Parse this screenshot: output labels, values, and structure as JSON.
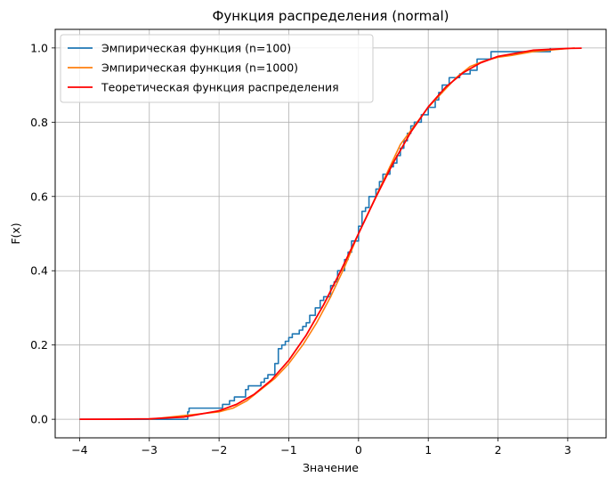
{
  "chart_data": {
    "type": "line",
    "title": "Функция распределения (normal)",
    "xlabel": "Значение",
    "ylabel": "F(x)",
    "xlim": [
      -4.35,
      3.55
    ],
    "ylim": [
      -0.05,
      1.05
    ],
    "xticks": [
      -4,
      -3,
      -2,
      -1,
      0,
      1,
      2,
      3
    ],
    "yticks": [
      0.0,
      0.2,
      0.4,
      0.6,
      0.8,
      1.0
    ],
    "xtick_labels": [
      "−4",
      "−3",
      "−2",
      "−1",
      "0",
      "1",
      "2",
      "3"
    ],
    "ytick_labels": [
      "0.0",
      "0.2",
      "0.4",
      "0.6",
      "0.8",
      "1.0"
    ],
    "grid": true,
    "legend_position": "top-left",
    "series": [
      {
        "name": "Эмпирическая функция (n=100)",
        "color": "#1f77b4",
        "style": "step",
        "x": [
          -4.0,
          -2.45,
          -2.43,
          -1.95,
          -1.85,
          -1.78,
          -1.62,
          -1.58,
          -1.4,
          -1.35,
          -1.3,
          -1.2,
          -1.15,
          -1.1,
          -1.05,
          -1.0,
          -0.95,
          -0.85,
          -0.8,
          -0.75,
          -0.7,
          -0.62,
          -0.55,
          -0.5,
          -0.4,
          -0.35,
          -0.3,
          -0.2,
          -0.15,
          -0.1,
          0.0,
          0.05,
          0.1,
          0.15,
          0.25,
          0.3,
          0.35,
          0.45,
          0.5,
          0.55,
          0.6,
          0.65,
          0.7,
          0.75,
          0.8,
          0.9,
          1.0,
          1.1,
          1.15,
          1.2,
          1.3,
          1.45,
          1.6,
          1.7,
          1.9,
          2.3,
          2.75
        ],
        "y": [
          0.0,
          0.02,
          0.03,
          0.04,
          0.05,
          0.06,
          0.08,
          0.09,
          0.1,
          0.11,
          0.12,
          0.15,
          0.19,
          0.2,
          0.21,
          0.22,
          0.23,
          0.24,
          0.25,
          0.26,
          0.28,
          0.3,
          0.32,
          0.33,
          0.36,
          0.37,
          0.4,
          0.43,
          0.45,
          0.48,
          0.52,
          0.56,
          0.57,
          0.6,
          0.62,
          0.64,
          0.66,
          0.68,
          0.69,
          0.71,
          0.73,
          0.75,
          0.77,
          0.79,
          0.8,
          0.82,
          0.84,
          0.86,
          0.88,
          0.9,
          0.92,
          0.93,
          0.94,
          0.97,
          0.99,
          0.99,
          1.0
        ]
      },
      {
        "name": "Эмпирическая функция (n=1000)",
        "color": "#ff7f0e",
        "style": "line",
        "x": [
          -3.0,
          -2.5,
          -2.0,
          -1.8,
          -1.6,
          -1.4,
          -1.2,
          -1.0,
          -0.8,
          -0.6,
          -0.4,
          -0.2,
          0.0,
          0.2,
          0.4,
          0.6,
          0.8,
          1.0,
          1.2,
          1.4,
          1.6,
          1.8,
          2.0,
          2.2,
          2.5,
          3.1
        ],
        "y": [
          0.0,
          0.01,
          0.02,
          0.03,
          0.05,
          0.08,
          0.11,
          0.15,
          0.2,
          0.26,
          0.33,
          0.41,
          0.5,
          0.58,
          0.66,
          0.74,
          0.79,
          0.84,
          0.88,
          0.92,
          0.95,
          0.965,
          0.975,
          0.98,
          0.99,
          1.0
        ]
      },
      {
        "name": "Теоретическая функция распределения",
        "color": "#ff0000",
        "style": "line",
        "x": [
          -4.0,
          -3.5,
          -3.0,
          -2.5,
          -2.0,
          -1.75,
          -1.5,
          -1.25,
          -1.0,
          -0.75,
          -0.5,
          -0.25,
          0.0,
          0.25,
          0.5,
          0.75,
          1.0,
          1.25,
          1.5,
          1.75,
          2.0,
          2.5,
          3.0,
          3.2
        ],
        "y": [
          3e-05,
          0.0002,
          0.0013,
          0.0062,
          0.0228,
          0.0401,
          0.0668,
          0.1056,
          0.1587,
          0.2266,
          0.3085,
          0.4013,
          0.5,
          0.5987,
          0.6915,
          0.7734,
          0.8413,
          0.8944,
          0.9332,
          0.9599,
          0.9772,
          0.9938,
          0.9987,
          0.9993
        ]
      }
    ]
  }
}
